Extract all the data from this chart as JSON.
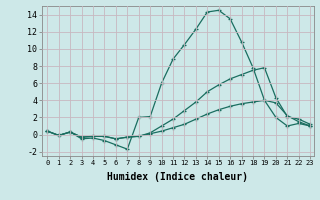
{
  "title": "",
  "xlabel": "Humidex (Indice chaleur)",
  "ylabel": "",
  "background_color": "#cde8e8",
  "line_color": "#1a6e60",
  "grid_color": "#b8d8d8",
  "x_min": -0.5,
  "x_max": 23.3,
  "y_min": -2.5,
  "y_max": 15.0,
  "x_ticks": [
    0,
    1,
    2,
    3,
    4,
    5,
    6,
    7,
    8,
    9,
    10,
    11,
    12,
    13,
    14,
    15,
    16,
    17,
    18,
    19,
    20,
    21,
    22,
    23
  ],
  "y_ticks": [
    -2,
    0,
    2,
    4,
    6,
    8,
    10,
    12,
    14
  ],
  "series1_x": [
    0,
    1,
    2,
    3,
    4,
    5,
    6,
    7,
    8,
    9,
    10,
    11,
    12,
    13,
    14,
    15,
    16,
    17,
    18,
    19,
    20,
    21,
    22,
    23
  ],
  "series1_y": [
    0.4,
    -0.1,
    0.3,
    -0.5,
    -0.4,
    -0.7,
    -1.2,
    -1.7,
    2.0,
    2.1,
    6.0,
    8.8,
    10.5,
    12.3,
    14.3,
    14.5,
    13.5,
    10.8,
    7.8,
    4.0,
    2.0,
    1.0,
    1.3,
    1.0
  ],
  "series2_x": [
    0,
    1,
    2,
    3,
    4,
    5,
    6,
    7,
    8,
    9,
    10,
    11,
    12,
    13,
    14,
    15,
    16,
    17,
    18,
    19,
    20,
    21,
    22,
    23
  ],
  "series2_y": [
    0.4,
    -0.1,
    0.3,
    -0.3,
    -0.2,
    -0.2,
    -0.5,
    -0.3,
    -0.2,
    0.2,
    1.0,
    1.8,
    2.8,
    3.8,
    5.0,
    5.8,
    6.5,
    7.0,
    7.5,
    7.8,
    4.3,
    2.1,
    1.8,
    1.2
  ],
  "series3_x": [
    0,
    1,
    2,
    3,
    4,
    5,
    6,
    7,
    8,
    9,
    10,
    11,
    12,
    13,
    14,
    15,
    16,
    17,
    18,
    19,
    20,
    21,
    22,
    23
  ],
  "series3_y": [
    0.4,
    -0.1,
    0.3,
    -0.3,
    -0.2,
    -0.2,
    -0.5,
    -0.3,
    -0.2,
    0.1,
    0.4,
    0.8,
    1.2,
    1.8,
    2.4,
    2.9,
    3.3,
    3.6,
    3.8,
    4.0,
    3.7,
    2.2,
    1.5,
    1.0
  ]
}
